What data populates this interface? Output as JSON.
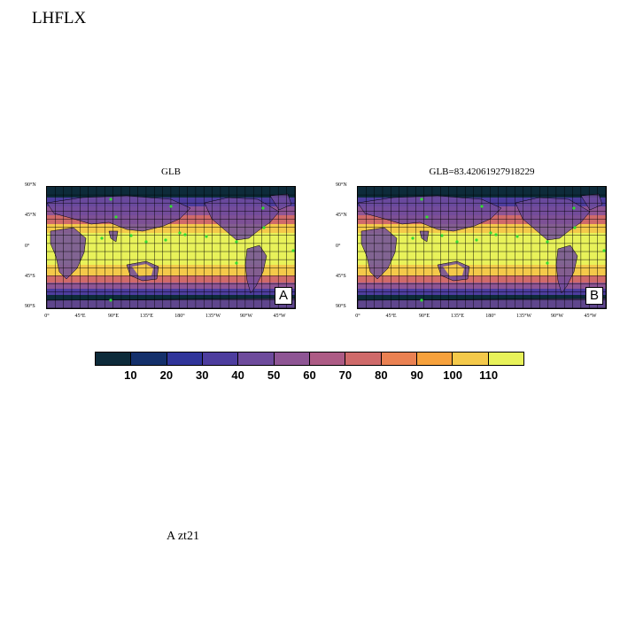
{
  "title": "LHFLX",
  "footer": "A  zt21",
  "panels": [
    {
      "title": "GLB",
      "corner": "A"
    },
    {
      "title": "GLB=83.42061927918229",
      "corner": "B"
    }
  ],
  "lat_labels": [
    "90°N",
    "45°N",
    "0°",
    "45°S",
    "90°S"
  ],
  "lon_labels": [
    "0°",
    "45°E",
    "90°E",
    "135°E",
    "180°",
    "135°W",
    "90°W",
    "45°W"
  ],
  "colorbar": {
    "labels": [
      "10",
      "20",
      "30",
      "40",
      "50",
      "60",
      "70",
      "80",
      "90",
      "100",
      "110"
    ],
    "colors": [
      "#0d2b3a",
      "#14306b",
      "#30359a",
      "#4d3d9e",
      "#6e4b9c",
      "#8e5594",
      "#ad5b85",
      "#cf6a6a",
      "#ea8152",
      "#f6a13c",
      "#f4c94a",
      "#e8f25a"
    ]
  },
  "field_colors": {
    "polar": "#0d2b3a",
    "subpolar": "#4d3d9e",
    "midlat": "#8e5594",
    "storm": "#cf6a6a",
    "subtrop": "#f4c94a",
    "tropics": "#e8f25a",
    "land": "#6e4b9c",
    "grid": "#000000",
    "markers": "#33dd33"
  }
}
